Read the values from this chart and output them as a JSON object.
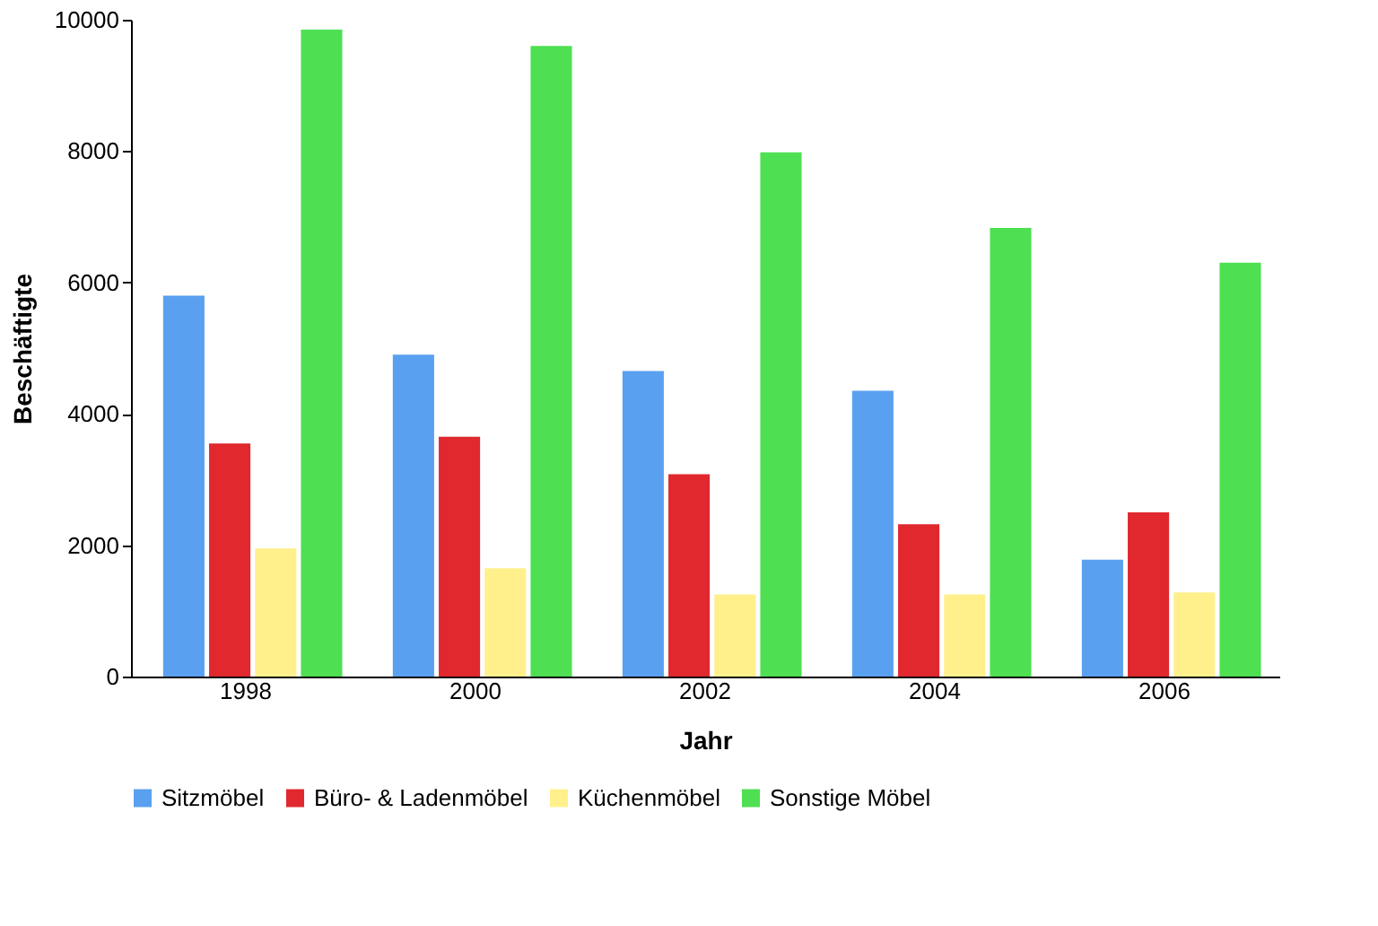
{
  "chart_data": {
    "type": "bar",
    "xlabel": "Jahr",
    "ylabel": "Beschäftigte",
    "categories": [
      "1998",
      "2000",
      "2002",
      "2004",
      "2006"
    ],
    "series": [
      {
        "name": "Sitzmöbel",
        "color": "#5aa0f0",
        "values": [
          5800,
          4900,
          4650,
          4350,
          1780
        ]
      },
      {
        "name": "Büro- & Ladenmöbel",
        "color": "#e0282e",
        "values": [
          3550,
          3650,
          3080,
          2320,
          2500
        ]
      },
      {
        "name": "Küchenmöbel",
        "color": "#fff08c",
        "values": [
          1950,
          1650,
          1250,
          1250,
          1280
        ]
      },
      {
        "name": "Sonstige Möbel",
        "color": "#4ee052",
        "values": [
          9850,
          9600,
          7980,
          6830,
          6300
        ]
      }
    ],
    "ylim": [
      0,
      10000
    ],
    "yticks": [
      0,
      2000,
      4000,
      6000,
      8000,
      10000
    ],
    "grid": false,
    "legend": "bottom"
  }
}
